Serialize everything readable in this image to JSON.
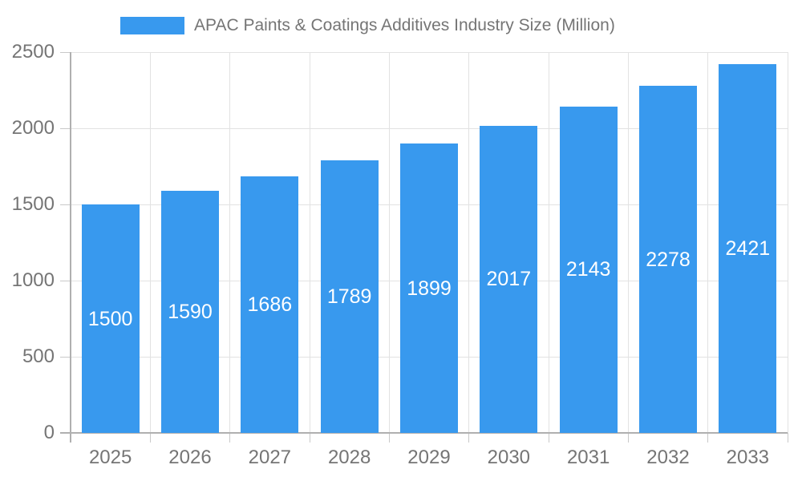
{
  "chart_data": {
    "type": "bar",
    "title": "APAC Paints & Coatings Additives Industry Size (Million)",
    "categories": [
      "2025",
      "2026",
      "2027",
      "2028",
      "2029",
      "2030",
      "2031",
      "2032",
      "2033"
    ],
    "values": [
      1500,
      1590,
      1686,
      1789,
      1899,
      2017,
      2143,
      2278,
      2421
    ],
    "xlabel": "",
    "ylabel": "",
    "ylim": [
      0,
      2500
    ],
    "ytick_step": 500,
    "ytick_labels": [
      "0",
      "500",
      "1000",
      "1500",
      "2000",
      "2500"
    ],
    "grid": "on",
    "legend_position": "top",
    "colors": {
      "bar": "#3899ee",
      "grid": "#e2e2e2",
      "axis": "#b0b0b0",
      "tick": "#c9c9c9",
      "text": "#757575",
      "value_label": "#ffffff",
      "background": "#ffffff"
    }
  }
}
